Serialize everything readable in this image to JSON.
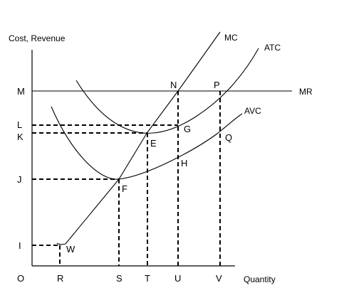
{
  "axes": {
    "y_title": "Cost, Revenue",
    "x_title": "Quantity",
    "origin": "O"
  },
  "y_ticks": [
    "M",
    "L",
    "K",
    "J",
    "I"
  ],
  "x_ticks": [
    "R",
    "S",
    "T",
    "U",
    "V"
  ],
  "curves": {
    "mc": "MC",
    "atc": "ATC",
    "avc": "AVC",
    "mr": "MR"
  },
  "points": {
    "n": "N",
    "p": "P",
    "g": "G",
    "e": "E",
    "q": "Q",
    "h": "H",
    "f": "F",
    "w": "W"
  }
}
